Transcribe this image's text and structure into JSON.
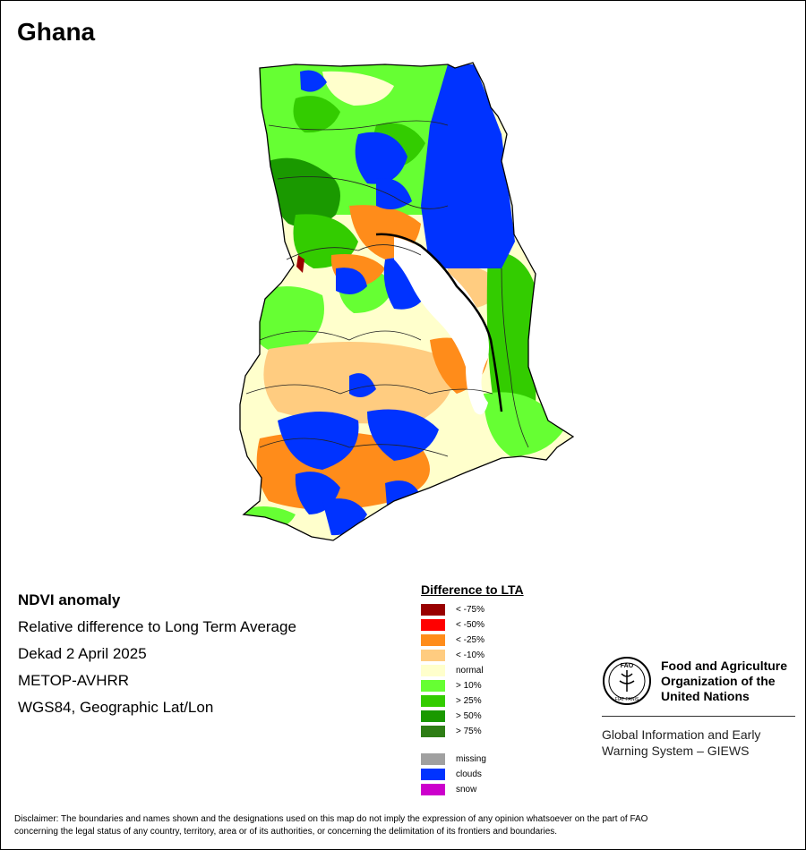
{
  "map": {
    "title": "Ghana",
    "colors": {
      "lt_75": "#990000",
      "lt_50": "#ff0000",
      "lt_25": "#ff8c1a",
      "lt_10": "#ffcc80",
      "normal": "#ffffcc",
      "gt_10": "#66ff33",
      "gt_25": "#33cc00",
      "gt_50": "#1a9900",
      "gt_75": "#2e7d15",
      "clouds": "#0033ff",
      "boundary": "#000000"
    }
  },
  "meta": {
    "product": "NDVI anomaly",
    "description": "Relative difference to Long Term Average",
    "period": "Dekad 2 April 2025",
    "sensor": "METOP-AVHRR",
    "projection": "WGS84, Geographic Lat/Lon"
  },
  "legend": {
    "title": "Difference to LTA",
    "classes": [
      {
        "label": "< -75%",
        "color": "#990000"
      },
      {
        "label": "< -50%",
        "color": "#ff0000"
      },
      {
        "label": "< -25%",
        "color": "#ff8c1a"
      },
      {
        "label": "< -10%",
        "color": "#ffcc80"
      },
      {
        "label": "normal",
        "color": "#ffffcc"
      },
      {
        "label": "> 10%",
        "color": "#66ff33"
      },
      {
        "label": "> 25%",
        "color": "#33cc00"
      },
      {
        "label": "> 50%",
        "color": "#1a9900"
      },
      {
        "label": "> 75%",
        "color": "#2e7d15"
      }
    ],
    "special": [
      {
        "label": "missing",
        "color": "#a0a0a0"
      },
      {
        "label": "clouds",
        "color": "#0033ff"
      },
      {
        "label": "snow",
        "color": "#cc00cc"
      }
    ]
  },
  "fao": {
    "logo_text": "FAO",
    "logo_motto": "FIAT PANIS",
    "name_line1": "Food and Agriculture",
    "name_line2": "Organization of the",
    "name_line3": "United Nations",
    "giews_line1": "Global Information and Early",
    "giews_line2": "Warning System – GIEWS"
  },
  "disclaimer": {
    "line1": "Disclaimer: The boundaries and names shown and the designations used on this map do not imply the expression of any opinion whatsoever on the part of FAO",
    "line2": "concerning the legal status of any country, territory, area or of its authorities, or concerning the delimitation of its frontiers and boundaries."
  }
}
